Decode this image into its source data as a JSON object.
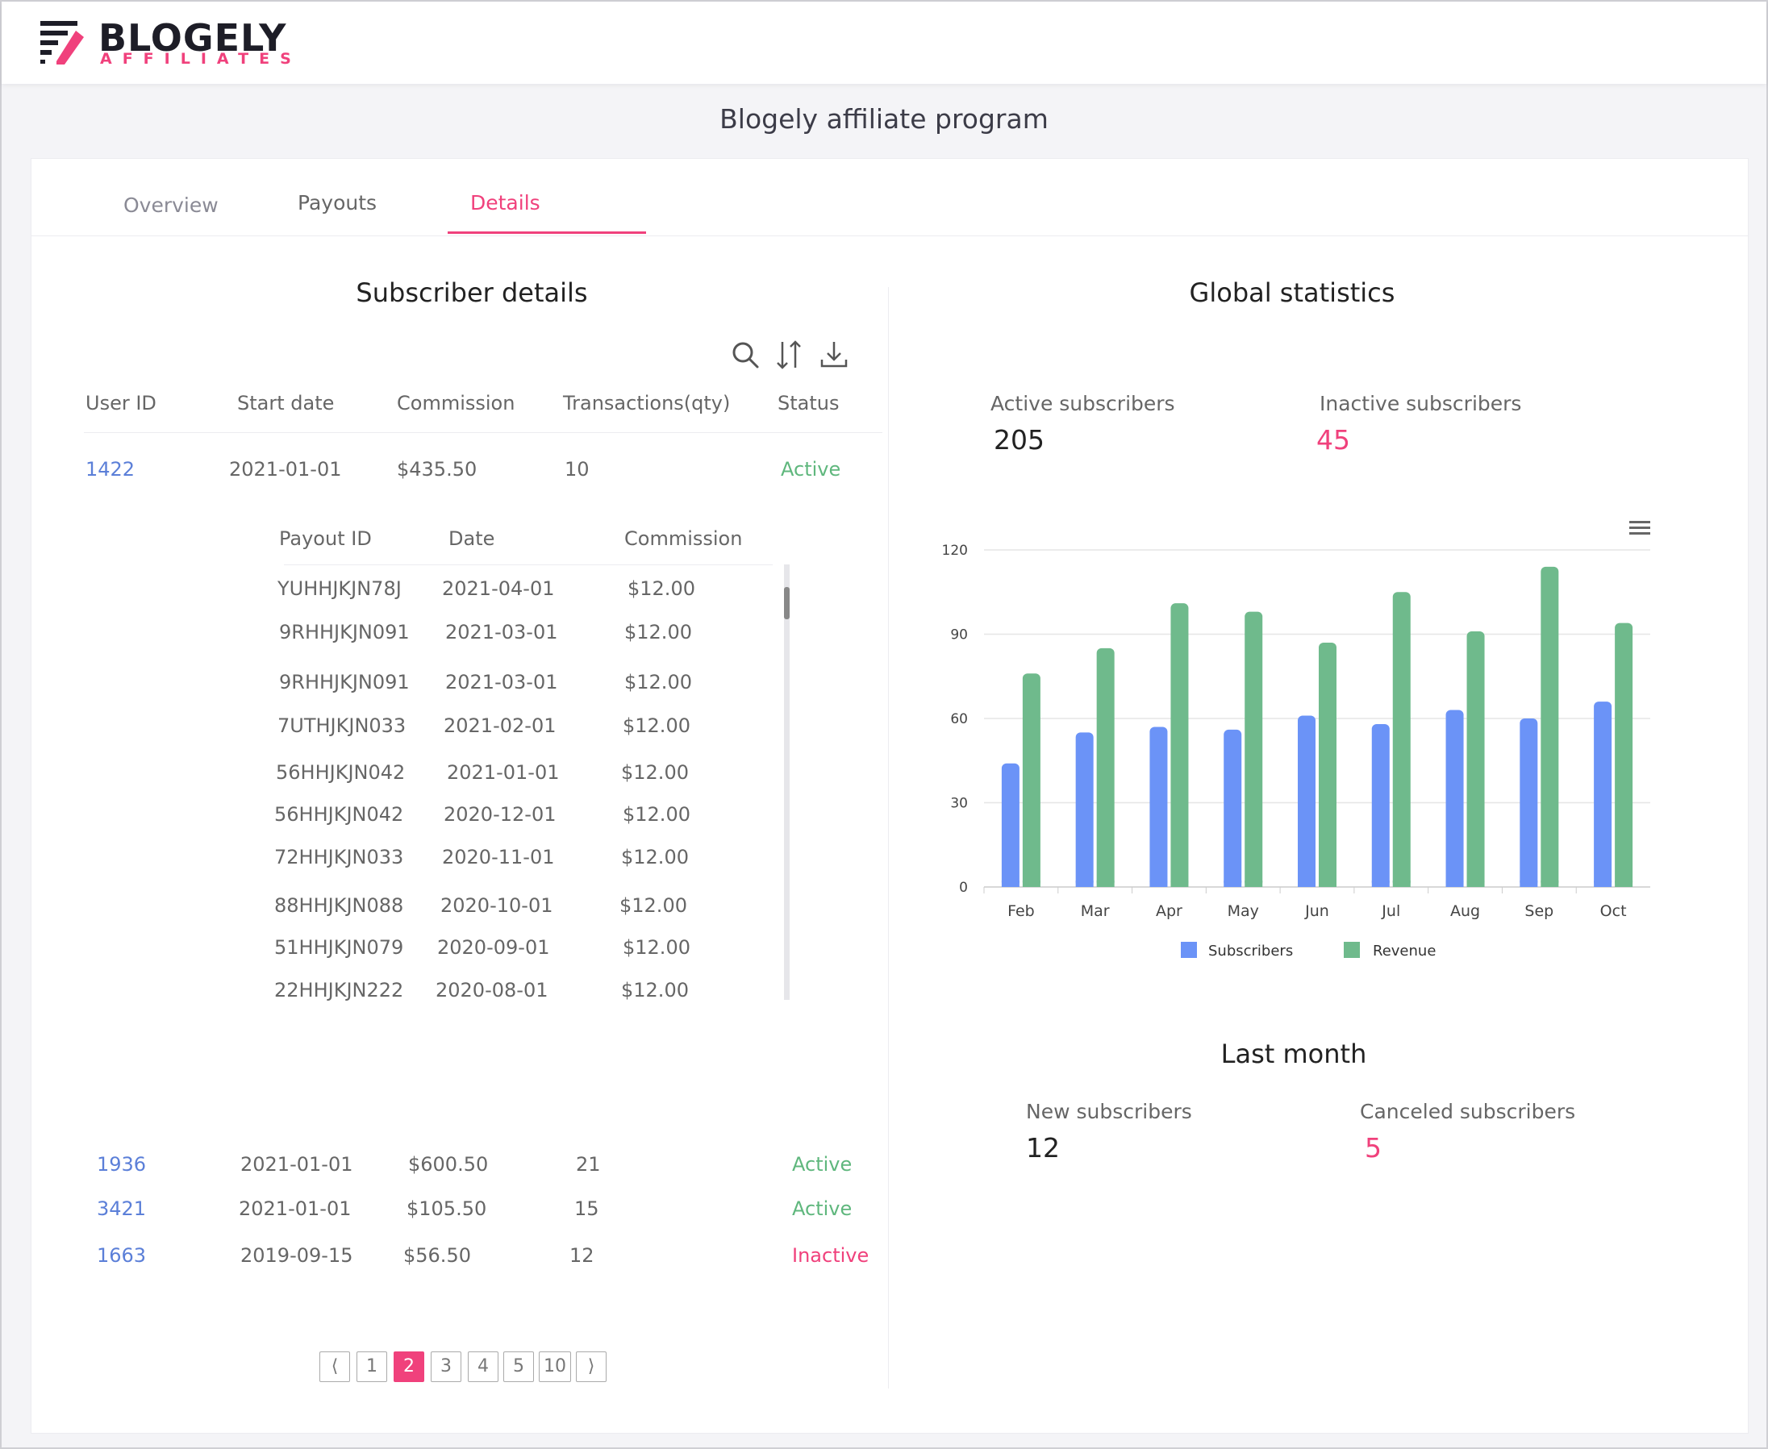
{
  "brand": {
    "name": "BLOGELY",
    "tagline": "AFFILIATES"
  },
  "program_title": "Blogely affiliate program",
  "tabs": [
    {
      "label": "Overview"
    },
    {
      "label": "Payouts"
    },
    {
      "label": "Details"
    }
  ],
  "subscribers": {
    "title": "Subscriber details",
    "icons": {
      "search": "search-icon",
      "sort": "sort-icon",
      "download": "download-icon"
    },
    "columns": [
      "User ID",
      "Start date",
      "Commission",
      "Transactions(qty)",
      "Status"
    ],
    "rows": [
      {
        "user_id": "1422",
        "start_date": "2021-01-01",
        "commission": "$435.50",
        "transactions": "10",
        "status": "Active"
      },
      {
        "user_id": "1936",
        "start_date": "2021-01-01",
        "commission": "$600.50",
        "transactions": "21",
        "status": "Active"
      },
      {
        "user_id": "3421",
        "start_date": "2021-01-01",
        "commission": "$105.50",
        "transactions": "15",
        "status": "Active"
      },
      {
        "user_id": "1663",
        "start_date": "2019-09-15",
        "commission": "$56.50",
        "transactions": "12",
        "status": "Inactive"
      }
    ],
    "payouts": {
      "columns": [
        "Payout ID",
        "Date",
        "Commission"
      ],
      "rows": [
        {
          "id": "YUHHJKJN78J",
          "date": "2021-04-01",
          "commission": "$12.00"
        },
        {
          "id": "9RHHJKJN091",
          "date": "2021-03-01",
          "commission": "$12.00"
        },
        {
          "id": "9RHHJKJN091",
          "date": "2021-03-01",
          "commission": "$12.00"
        },
        {
          "id": "7UTHJKJN033",
          "date": "2021-02-01",
          "commission": "$12.00"
        },
        {
          "id": "56HHJKJN042",
          "date": "2021-01-01",
          "commission": "$12.00"
        },
        {
          "id": "56HHJKJN042",
          "date": "2020-12-01",
          "commission": "$12.00"
        },
        {
          "id": "72HHJKJN033",
          "date": "2020-11-01",
          "commission": "$12.00"
        },
        {
          "id": "88HHJKJN088",
          "date": "2020-10-01",
          "commission": "$12.00"
        },
        {
          "id": "51HHJKJN079",
          "date": "2020-09-01",
          "commission": "$12.00"
        },
        {
          "id": "22HHJKJN222",
          "date": "2020-08-01",
          "commission": "$12.00"
        }
      ]
    },
    "pagination": {
      "prev": "⟨",
      "next": "⟩",
      "pages": [
        "1",
        "2",
        "3",
        "4",
        "5",
        "10"
      ],
      "current": "2"
    }
  },
  "global": {
    "title": "Global statistics",
    "active_label": "Active subscribers",
    "active_value": "205",
    "inactive_label": "Inactive subscribers",
    "inactive_value": "45",
    "menu_icon": "hamburger-icon"
  },
  "last_month": {
    "title": "Last month",
    "new_label": "New subscribers",
    "new_value": "12",
    "canceled_label": "Canceled subscribers",
    "canceled_value": "5"
  },
  "colors": {
    "accent": "#f0417c",
    "subscribers": "#6b93f7",
    "revenue": "#6fba8c",
    "link": "#5b7fd8",
    "active": "#5fb77d"
  },
  "chart_data": {
    "type": "bar",
    "categories": [
      "Feb",
      "Mar",
      "Apr",
      "May",
      "Jun",
      "Jul",
      "Aug",
      "Sep",
      "Oct"
    ],
    "series": [
      {
        "name": "Subscribers",
        "values": [
          44,
          55,
          57,
          56,
          61,
          58,
          63,
          60,
          66
        ]
      },
      {
        "name": "Revenue",
        "values": [
          76,
          85,
          101,
          98,
          87,
          105,
          91,
          114,
          94
        ]
      }
    ],
    "yticks": [
      "0",
      "30",
      "60",
      "90",
      "120"
    ],
    "ylim": [
      0,
      120
    ],
    "legend": "bottom-center",
    "grid": true
  }
}
